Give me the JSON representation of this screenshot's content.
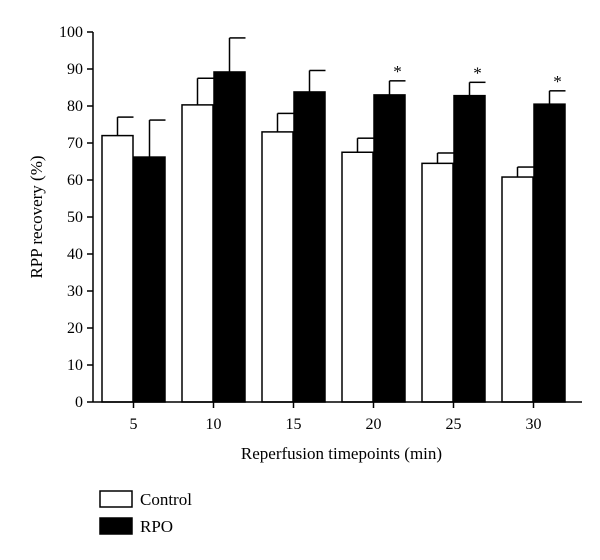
{
  "chart_data": {
    "type": "bar",
    "title": "",
    "xlabel": "Reperfusion timepoints (min)",
    "ylabel": "RPP recovery (%)",
    "ylim": [
      0,
      100
    ],
    "yticks": [
      0,
      10,
      20,
      30,
      40,
      50,
      60,
      70,
      80,
      90,
      100
    ],
    "categories": [
      "5",
      "10",
      "15",
      "20",
      "25",
      "30"
    ],
    "series": [
      {
        "name": "Control",
        "color": "#ffffff",
        "values": [
          72,
          80.3,
          73,
          67.5,
          64.5,
          60.8
        ],
        "errors": [
          5,
          7.2,
          5,
          3.8,
          2.8,
          2.7
        ]
      },
      {
        "name": "RPO",
        "color": "#000000",
        "values": [
          66.2,
          89.2,
          83.8,
          83,
          82.8,
          80.5
        ],
        "errors": [
          10,
          9.2,
          5.8,
          3.8,
          3.6,
          3.6
        ]
      }
    ],
    "annotations": [
      {
        "category": "20",
        "series": "RPO",
        "text": "*"
      },
      {
        "category": "25",
        "series": "RPO",
        "text": "*"
      },
      {
        "category": "30",
        "series": "RPO",
        "text": "*"
      }
    ],
    "grid": false,
    "legend_position": "bottom-left"
  }
}
